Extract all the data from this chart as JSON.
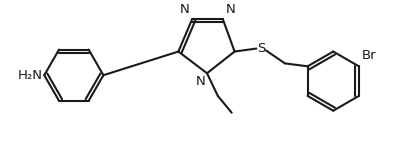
{
  "bg_color": "#ffffff",
  "line_color": "#1a1a1a",
  "lw": 1.5,
  "fs": 9.5,
  "tc": "#1a1a1a",
  "figsize": [
    4.13,
    1.62
  ],
  "dpi": 100,
  "label_nh2": "H₂N",
  "label_n": "N",
  "label_s": "S",
  "label_br": "Br"
}
